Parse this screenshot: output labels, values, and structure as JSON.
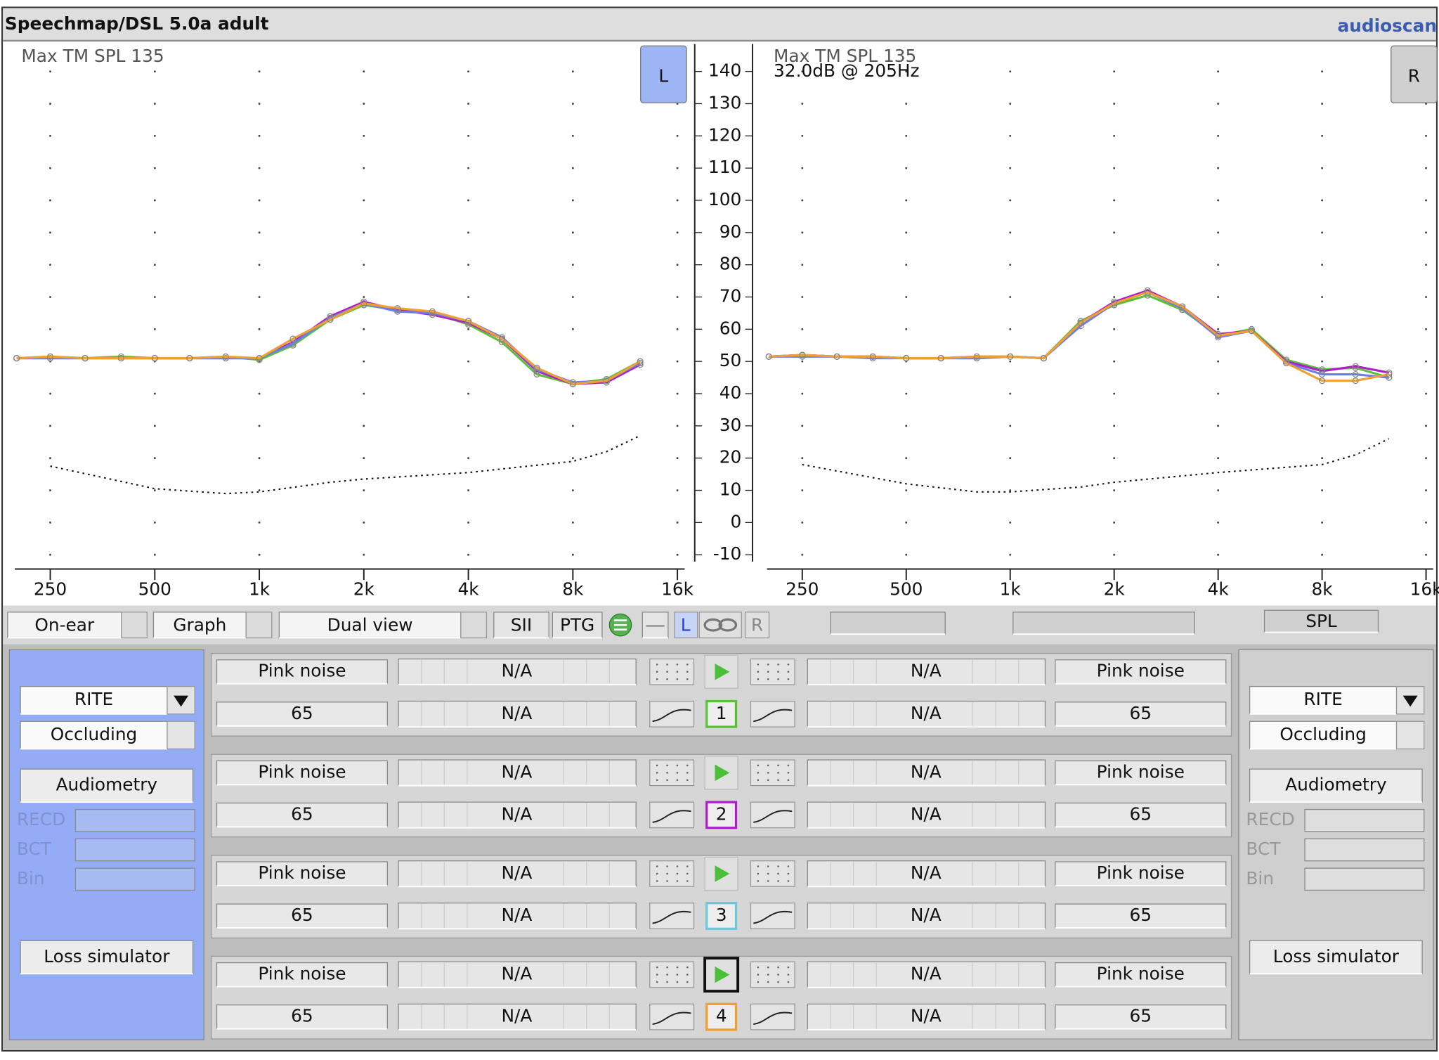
{
  "header": {
    "title": "Speechmap/DSL 5.0a adult",
    "logo": "audioscan"
  },
  "axis": {
    "xlim": [
      185,
      17200
    ],
    "xticks": [
      250,
      500,
      {
        "value": 1000,
        "label": "1k"
      },
      {
        "value": 2000,
        "label": "2k"
      },
      {
        "value": 4000,
        "label": "4k"
      },
      {
        "value": 8000,
        "label": "8k"
      },
      {
        "value": 16000,
        "label": "16k"
      }
    ],
    "ylim": [
      -13,
      148.5
    ],
    "yticks": [
      -10,
      0,
      10,
      20,
      30,
      40,
      50,
      60,
      70,
      80,
      90,
      100,
      110,
      120,
      130,
      140
    ]
  },
  "graphs": [
    {
      "ear": "L",
      "max_label": "Max TM SPL 135",
      "x": [
        200,
        250,
        315,
        400,
        500,
        630,
        800,
        1000,
        1250,
        1600,
        2000,
        2500,
        3150,
        4000,
        5000,
        6300,
        8000,
        10000,
        12500
      ],
      "series": [
        {
          "color": "#5cbf3a",
          "values": [
            51,
            51.5,
            51,
            51.5,
            51,
            51,
            51.5,
            50.5,
            55,
            63,
            67.5,
            66,
            65,
            61.5,
            56,
            46,
            43,
            44.5,
            50
          ]
        },
        {
          "color": "#b01ec8",
          "values": [
            51,
            51,
            51,
            51,
            51,
            51,
            51,
            51,
            56,
            64,
            68.5,
            66,
            64.5,
            62,
            57,
            47,
            43,
            43.5,
            49
          ]
        },
        {
          "color": "#6c7ee8",
          "values": [
            51,
            51,
            51,
            51,
            51,
            51,
            51,
            51,
            55.5,
            63.5,
            68,
            65.5,
            65,
            62.5,
            57.5,
            47.5,
            43.5,
            44,
            49.5
          ]
        },
        {
          "color": "#f0a030",
          "values": [
            51,
            51.5,
            51,
            51,
            51,
            51,
            51.5,
            51,
            57,
            63,
            68,
            66.5,
            65.5,
            62.5,
            57,
            48,
            43,
            44,
            50
          ]
        }
      ],
      "threshold": {
        "x": [
          250,
          500,
          800,
          1000,
          1600,
          2000,
          4000,
          8000,
          10000,
          12500
        ],
        "values": [
          17.5,
          10.5,
          9,
          9.5,
          12.5,
          13.5,
          15.5,
          19,
          22,
          27
        ]
      }
    },
    {
      "ear": "R",
      "max_label": "Max TM SPL 135",
      "note": "32.0dB @ 205Hz",
      "x": [
        200,
        250,
        315,
        400,
        500,
        630,
        800,
        1000,
        1250,
        1600,
        2000,
        2500,
        3150,
        4000,
        5000,
        6300,
        8000,
        10000,
        12500
      ],
      "series": [
        {
          "color": "#5cbf3a",
          "values": [
            51.5,
            52,
            51.5,
            51.5,
            51,
            51,
            51,
            51.5,
            51,
            62.5,
            67.5,
            70.5,
            66,
            58,
            60,
            50.5,
            47.5,
            48,
            45
          ]
        },
        {
          "color": "#b01ec8",
          "values": [
            51.5,
            52,
            51.5,
            51.5,
            51,
            51,
            51.5,
            51.5,
            51,
            62,
            68.5,
            72,
            67,
            58.5,
            59.5,
            50,
            47,
            48.5,
            46.5
          ]
        },
        {
          "color": "#6c7ee8",
          "values": [
            51.5,
            51.5,
            51.5,
            51,
            51,
            51,
            51,
            51.5,
            51,
            61,
            68,
            71.5,
            66.5,
            57.5,
            59.5,
            49.5,
            46,
            46,
            45
          ]
        },
        {
          "color": "#f0a030",
          "values": [
            51.5,
            52,
            51.5,
            51.5,
            51,
            51,
            51.5,
            51.5,
            51,
            62,
            68,
            71.5,
            67,
            58,
            59.5,
            49.5,
            44,
            44,
            46
          ]
        }
      ],
      "threshold": {
        "x": [
          250,
          500,
          800,
          1000,
          1600,
          2000,
          4000,
          8000,
          10000,
          12500
        ],
        "values": [
          18,
          12,
          9.5,
          9.5,
          11,
          12.5,
          15.5,
          18,
          21,
          26
        ]
      }
    }
  ],
  "toolbar": {
    "mode": "On-ear",
    "display": "Graph",
    "view": "Dual view",
    "sii": "SII",
    "ptg": "PTG",
    "left": "L",
    "right": "R",
    "scale": "SPL"
  },
  "ear_panels": [
    {
      "style": "RITE",
      "vent": "Occluding",
      "audiometry": "Audiometry",
      "fields": [
        "RECD",
        "BCT",
        "Bin"
      ],
      "loss_simulator": "Loss simulator"
    },
    {
      "style": "RITE",
      "vent": "Occluding",
      "audiometry": "Audiometry",
      "fields": [
        "RECD",
        "BCT",
        "Bin"
      ],
      "loss_simulator": "Loss simulator"
    }
  ],
  "tests": [
    {
      "number": 1,
      "color": "#5cbf3a",
      "left": {
        "stimulus": "Pink noise",
        "level": 65,
        "results": [
          "N/A",
          "N/A"
        ]
      },
      "right": {
        "stimulus": "Pink noise",
        "level": 65,
        "results": [
          "N/A",
          "N/A"
        ]
      }
    },
    {
      "number": 2,
      "color": "#b01ec8",
      "left": {
        "stimulus": "Pink noise",
        "level": 65,
        "results": [
          "N/A",
          "N/A"
        ]
      },
      "right": {
        "stimulus": "Pink noise",
        "level": 65,
        "results": [
          "N/A",
          "N/A"
        ]
      }
    },
    {
      "number": 3,
      "color": "#6cc8d8",
      "left": {
        "stimulus": "Pink noise",
        "level": 65,
        "results": [
          "N/A",
          "N/A"
        ]
      },
      "right": {
        "stimulus": "Pink noise",
        "level": 65,
        "results": [
          "N/A",
          "N/A"
        ]
      }
    },
    {
      "number": 4,
      "color": "#f0a030",
      "left": {
        "stimulus": "Pink noise",
        "level": 65,
        "results": [
          "N/A",
          "N/A"
        ]
      },
      "right": {
        "stimulus": "Pink noise",
        "level": 65,
        "results": [
          "N/A",
          "N/A"
        ]
      }
    }
  ]
}
